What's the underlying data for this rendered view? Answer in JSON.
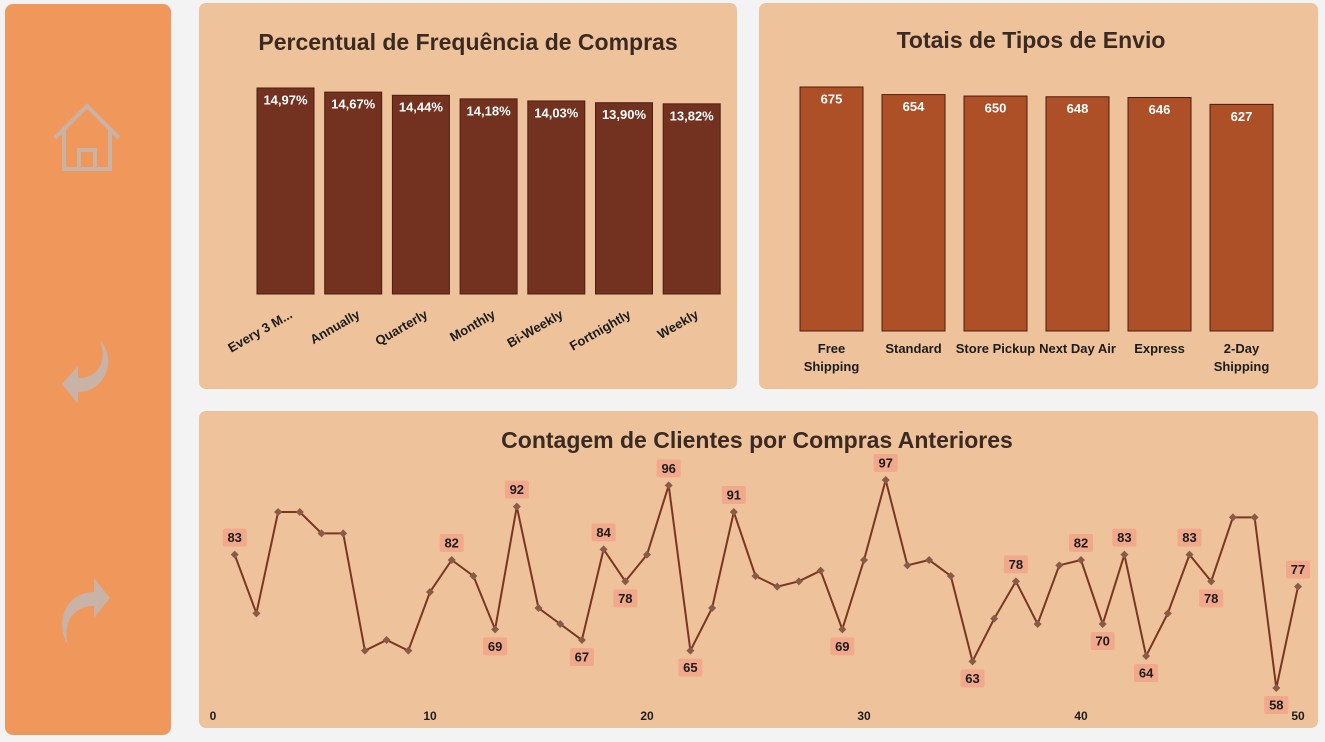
{
  "chart_data": [
    {
      "type": "bar",
      "title": "Percentual de Frequência de Compras",
      "color": "#733220",
      "categories": [
        "Every 3 M...",
        "Annually",
        "Quarterly",
        "Monthly",
        "Bi-Weekly",
        "Fortnightly",
        "Weekly"
      ],
      "values": [
        14.97,
        14.67,
        14.44,
        14.18,
        14.03,
        13.9,
        13.82
      ],
      "value_labels": [
        "14,97%",
        "14,67%",
        "14,44%",
        "14,18%",
        "14,03%",
        "13,90%",
        "13,82%"
      ]
    },
    {
      "type": "bar",
      "title": "Totais de Tipos de Envio",
      "color": "#ad4f27",
      "categories": [
        "Free Shipping",
        "Standard",
        "Store Pickup",
        "Next Day Air",
        "Express",
        "2-Day Shipping"
      ],
      "values": [
        675,
        654,
        650,
        648,
        646,
        627
      ]
    },
    {
      "type": "line",
      "title": "Contagem de Clientes por Compras Anteriores",
      "color": "#7b3520",
      "x": [
        1,
        2,
        3,
        4,
        5,
        6,
        7,
        8,
        9,
        10,
        11,
        12,
        13,
        14,
        15,
        16,
        17,
        18,
        19,
        20,
        21,
        22,
        23,
        24,
        25,
        26,
        27,
        28,
        29,
        30,
        31,
        32,
        33,
        34,
        35,
        36,
        37,
        38,
        39,
        40,
        41,
        42,
        43,
        44,
        45,
        46,
        47,
        48,
        49,
        50
      ],
      "values": [
        83,
        72,
        91,
        91,
        87,
        87,
        65,
        67,
        65,
        76,
        82,
        79,
        69,
        92,
        73,
        70,
        67,
        84,
        78,
        83,
        96,
        65,
        73,
        91,
        79,
        77,
        78,
        80,
        69,
        82,
        97,
        81,
        82,
        79,
        63,
        71,
        78,
        70,
        81,
        82,
        70,
        83,
        64,
        72,
        83,
        78,
        90,
        90,
        58,
        77
      ],
      "value_labels": [
        "83",
        null,
        null,
        null,
        null,
        null,
        null,
        null,
        null,
        null,
        "82",
        null,
        "69",
        "92",
        null,
        null,
        "67",
        "84",
        "78",
        null,
        "96",
        "65",
        null,
        "91",
        null,
        null,
        null,
        null,
        "69",
        null,
        "97",
        null,
        null,
        null,
        "63",
        null,
        "78",
        null,
        null,
        "82",
        "70",
        "83",
        "64",
        null,
        "83",
        "78",
        null,
        null,
        "58",
        "77"
      ],
      "xlim": [
        0,
        50
      ],
      "xticks": [
        0,
        10,
        20,
        30,
        40,
        50
      ]
    }
  ]
}
